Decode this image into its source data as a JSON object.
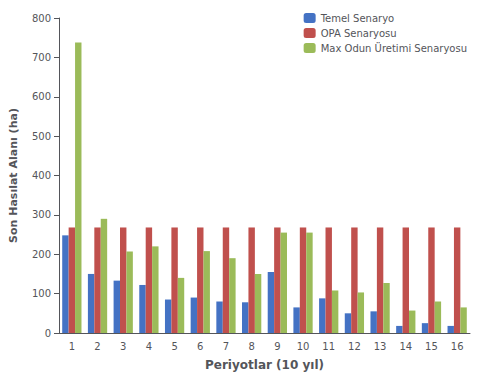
{
  "chart_data": {
    "type": "bar",
    "categories": [
      1,
      2,
      3,
      4,
      5,
      6,
      7,
      8,
      9,
      10,
      11,
      12,
      13,
      14,
      15,
      16
    ],
    "series": [
      {
        "name": "Temel Senaryo",
        "color": "#4472C4",
        "values": [
          248,
          150,
          133,
          122,
          85,
          90,
          80,
          78,
          155,
          65,
          88,
          50,
          55,
          18,
          25,
          18
        ]
      },
      {
        "name": "OPA Senaryosu",
        "color": "#C0504D",
        "values": [
          268,
          268,
          268,
          268,
          268,
          268,
          268,
          268,
          268,
          268,
          268,
          268,
          268,
          268,
          268,
          268
        ]
      },
      {
        "name": "Max Odun Üretimi Senaryosu",
        "color": "#9BBB59",
        "values": [
          738,
          290,
          207,
          220,
          140,
          208,
          190,
          150,
          255,
          255,
          108,
          103,
          127,
          57,
          80,
          65
        ]
      }
    ],
    "xlabel": "Periyotlar (10 yıl)",
    "ylabel": "Son Hasılat Alanı (ha)",
    "ylim": [
      0,
      800
    ],
    "yticks": [
      0,
      100,
      200,
      300,
      400,
      500,
      600,
      700,
      800
    ],
    "grid": false,
    "legend": "upper right"
  }
}
